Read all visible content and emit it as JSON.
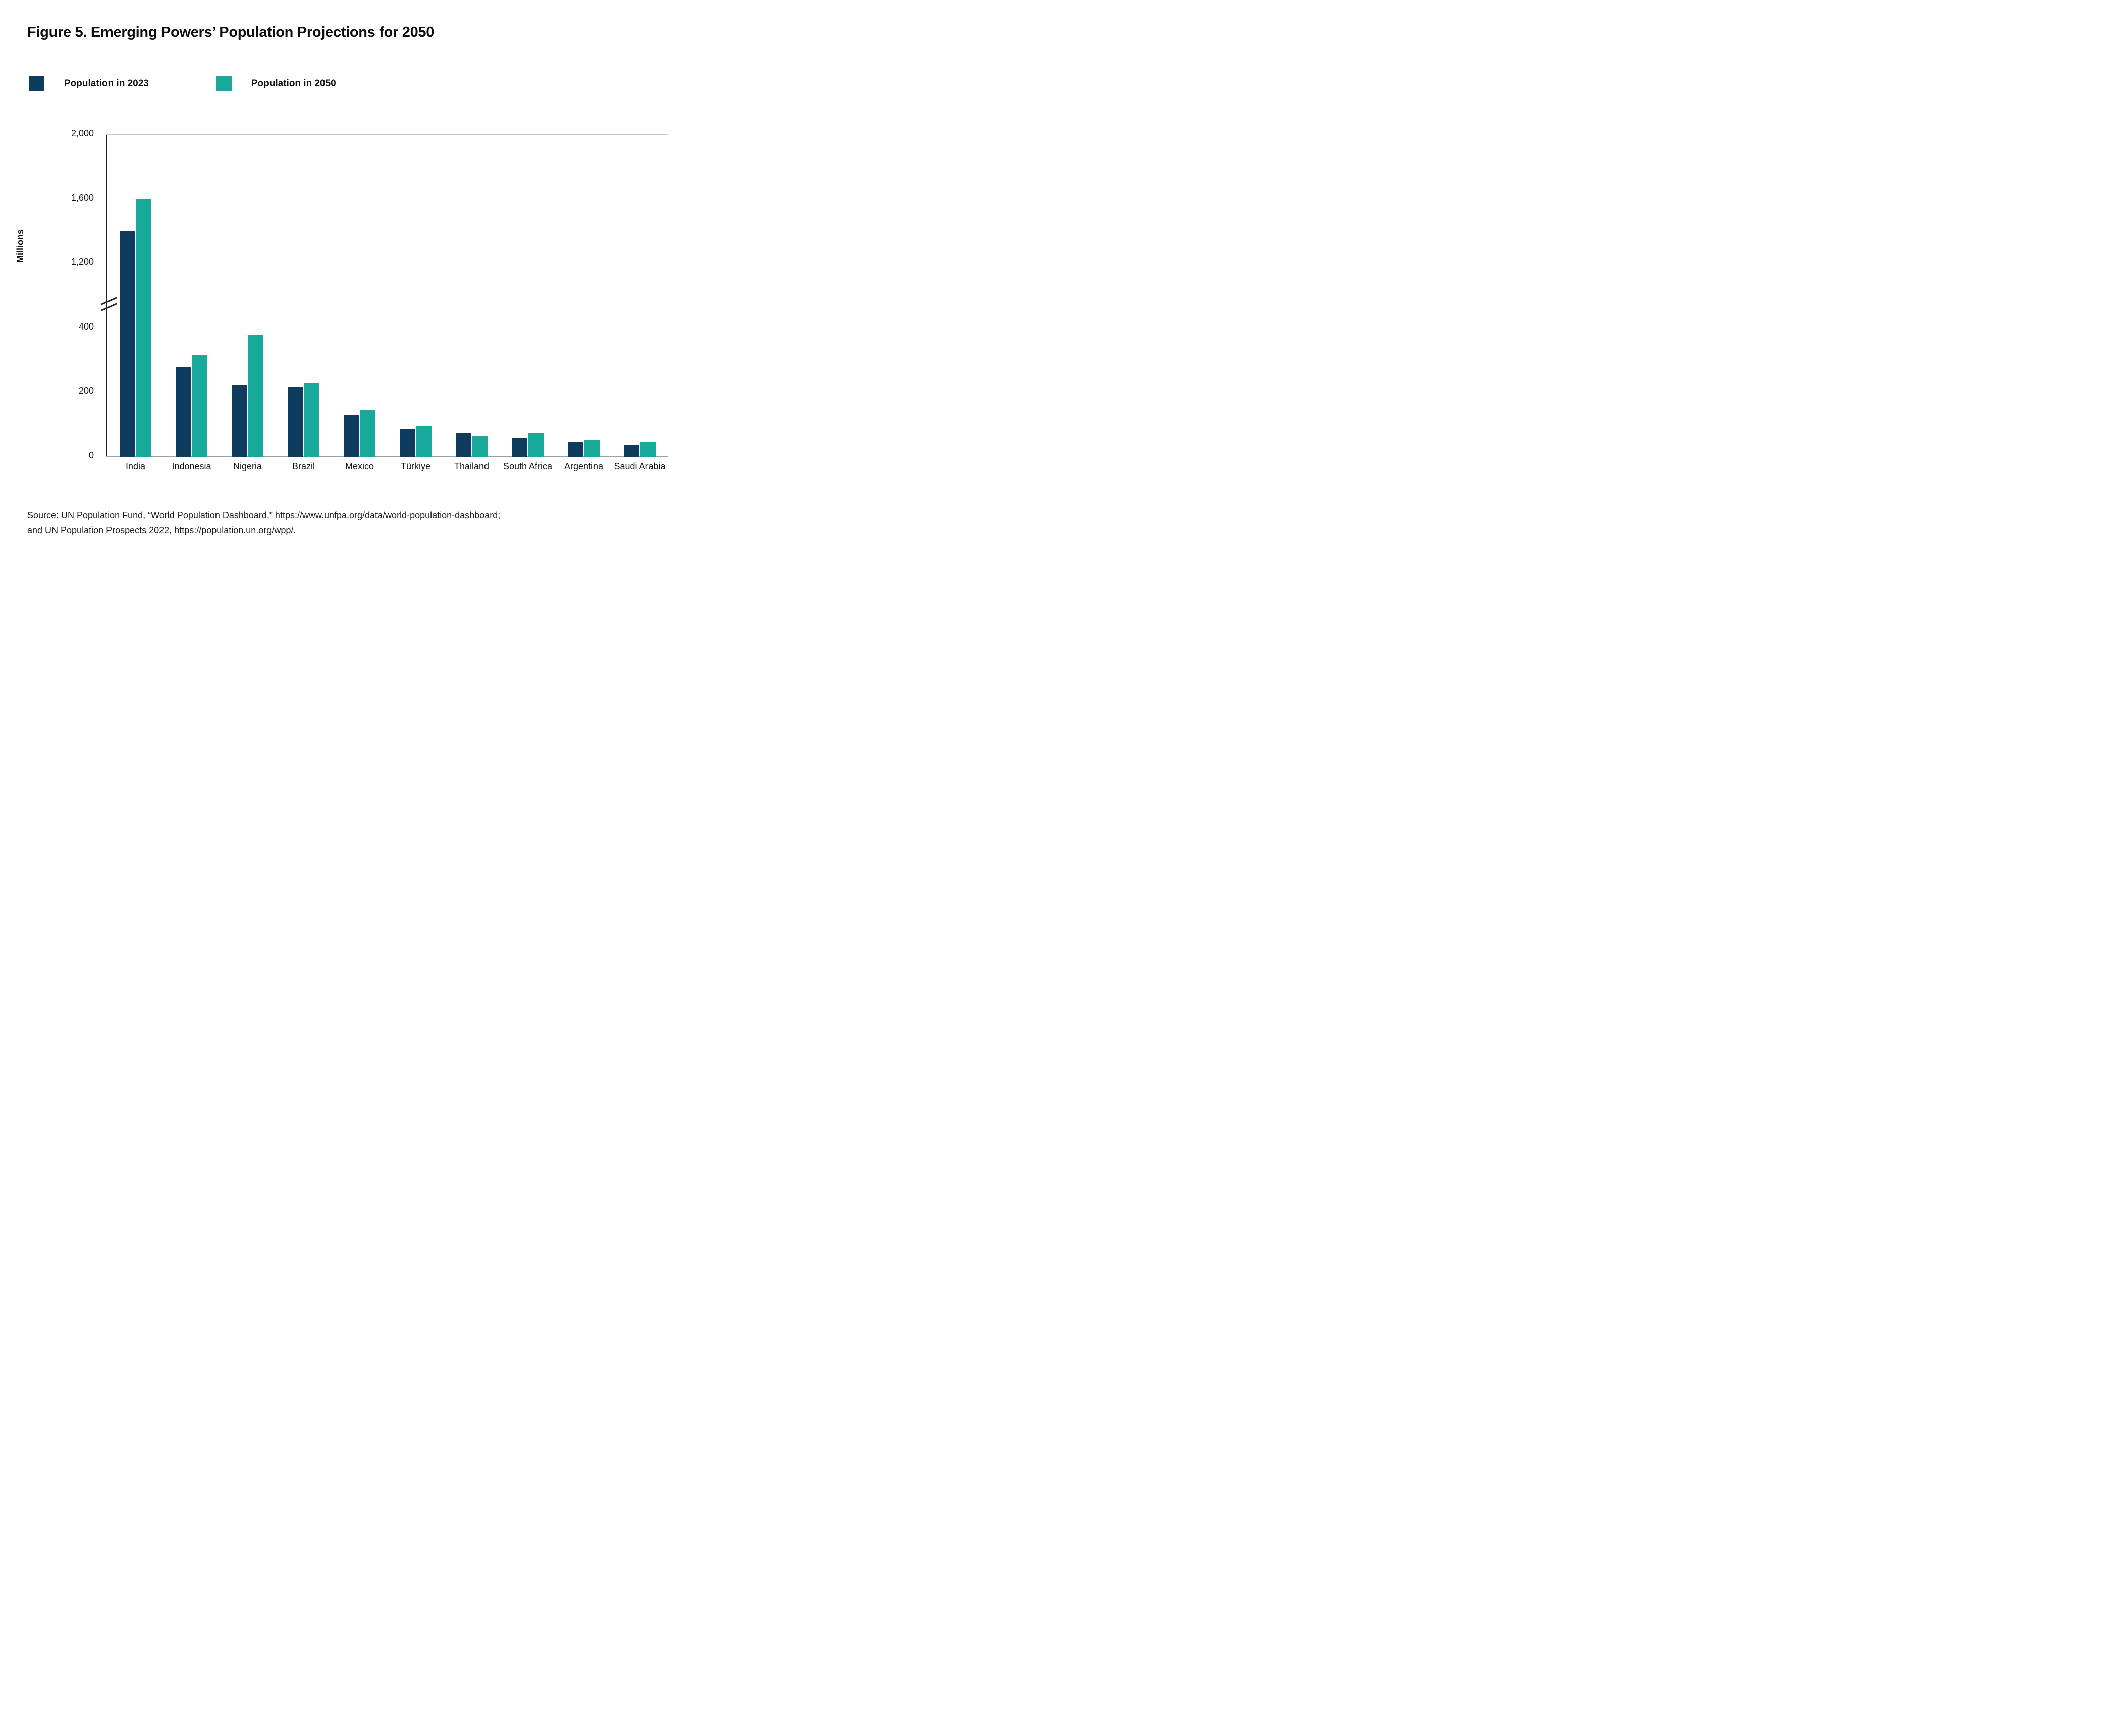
{
  "figure": {
    "title": "Figure 5. Emerging Powers’ Population Projections for 2050"
  },
  "legend": [
    {
      "label": "Population in 2023",
      "color": "#0d3c5f"
    },
    {
      "label": "Population in 2050",
      "color": "#18a99b"
    }
  ],
  "chart_data": {
    "type": "bar",
    "title": "Figure 5. Emerging Powers’ Population Projections for 2050",
    "xlabel": "",
    "ylabel": "Millions",
    "ylim": [
      0,
      2000
    ],
    "grid": true,
    "legend_position": "top-left",
    "axis_break_between": [
      400,
      1200
    ],
    "categories": [
      "India",
      "Indonesia",
      "Nigeria",
      "Brazil",
      "Mexico",
      "Türkiye",
      "Thailand",
      "South Africa",
      "Argentina",
      "Saudi Arabia"
    ],
    "series": [
      {
        "name": "Population in 2023",
        "color": "#0d3c5f",
        "values": [
          1400,
          277,
          224,
          216,
          129,
          86,
          72,
          60,
          46,
          37
        ]
      },
      {
        "name": "Population in 2050",
        "color": "#18a99b",
        "values": [
          1600,
          317,
          377,
          231,
          144,
          96,
          66,
          74,
          52,
          45
        ]
      }
    ],
    "y_ticks": [
      "0",
      "200",
      "400",
      "1,200",
      "1,600",
      "2,000"
    ]
  },
  "style": {
    "gridline_color": "#bdbdbd",
    "baseline_color": "#a0a0a0",
    "axis_color": "#232323"
  },
  "source": {
    "line1": "Source: UN Population Fund, “World Population Dashboard,” https://www.unfpa.org/data/world-population-dashboard;",
    "line2": "and UN Population Prospects 2022,  https://population.un.org/wpp/."
  }
}
